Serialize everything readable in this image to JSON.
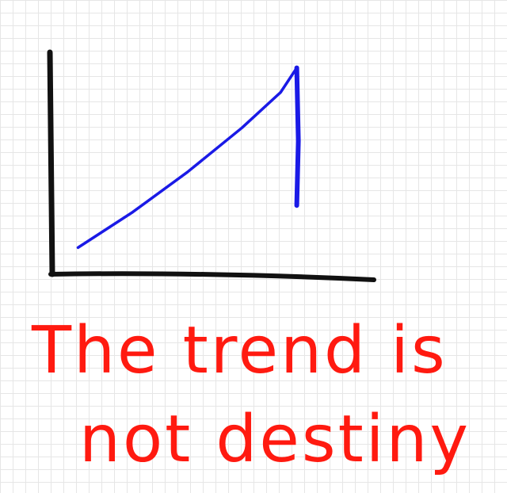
{
  "chart_data": {
    "type": "line",
    "title": "",
    "xlabel": "",
    "ylabel": "",
    "grid": true,
    "xlim": [
      0,
      10
    ],
    "ylim": [
      0,
      10
    ],
    "series": [
      {
        "color": "#1a1ae6",
        "x": [
          0.8,
          2.5,
          4.2,
          5.9,
          7.1,
          7.6,
          7.65,
          7.6
        ],
        "y": [
          1.2,
          2.8,
          4.6,
          6.6,
          8.2,
          9.3,
          6.0,
          3.1
        ]
      }
    ]
  },
  "caption": {
    "line1": "The trend is",
    "line2": "not destiny",
    "color": "#ff1a10"
  },
  "axis_color": "#111111"
}
